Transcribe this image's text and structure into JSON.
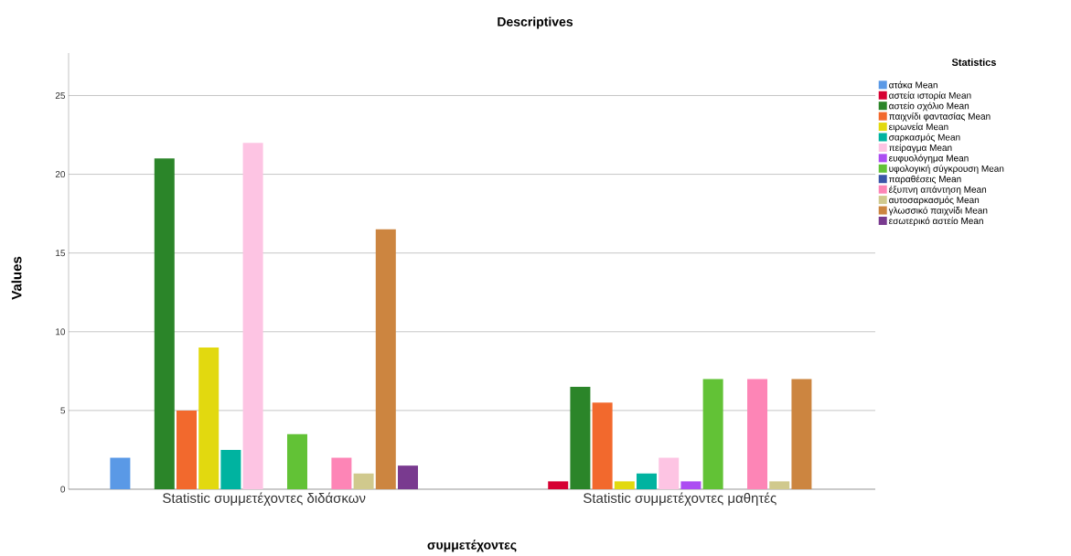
{
  "chart_data": {
    "type": "bar",
    "title": "Descriptives",
    "xlabel": "συμμετέχοντες",
    "ylabel": "Values",
    "legend_title": "Statistics",
    "categories": [
      "Statistic συμμετέχοντες διδάσκων",
      "Statistic συμμετέχοντες μαθητές"
    ],
    "series": [
      {
        "name": "ατάκα Mean",
        "color": "#5a99e6",
        "values": [
          2,
          0
        ]
      },
      {
        "name": "αστεία ιστορία Mean",
        "color": "#d60032",
        "values": [
          0,
          0.5
        ]
      },
      {
        "name": "αστείο σχόλιο Mean",
        "color": "#2b8529",
        "values": [
          21,
          6.5
        ]
      },
      {
        "name": "παιχνίδι φαντασίας Mean",
        "color": "#f2692d",
        "values": [
          5,
          5.5
        ]
      },
      {
        "name": "ειρωνεία Mean",
        "color": "#e2d90f",
        "values": [
          9,
          0.5
        ]
      },
      {
        "name": "σαρκασμός Mean",
        "color": "#00b3a0",
        "values": [
          2.5,
          1
        ]
      },
      {
        "name": "πείραγμα Mean",
        "color": "#fdc4e3",
        "values": [
          22,
          2
        ]
      },
      {
        "name": "ευφυολόγημα Mean",
        "color": "#ac4df2",
        "values": [
          0,
          0.5
        ]
      },
      {
        "name": "υφολογική σύγκρουση Mean",
        "color": "#62c236",
        "values": [
          3.5,
          7
        ]
      },
      {
        "name": "παραθέσεις Mean",
        "color": "#3a55a8",
        "values": [
          0,
          0
        ]
      },
      {
        "name": "έξυπνη απάντηση Mean",
        "color": "#fd85b6",
        "values": [
          2,
          7
        ]
      },
      {
        "name": "αυτοσαρκασμός Mean",
        "color": "#d0c98d",
        "values": [
          1,
          0.5
        ]
      },
      {
        "name": "γλωσσικό παιχνίδι Mean",
        "color": "#cc8540",
        "values": [
          16.5,
          7
        ]
      },
      {
        "name": "εσωτερικό αστείο Mean",
        "color": "#793a8f",
        "values": [
          1.5,
          0
        ]
      }
    ],
    "ylim": [
      0,
      27.7
    ],
    "yticks": [
      0,
      5,
      10,
      15,
      20,
      25
    ],
    "grid": "y",
    "legend": "top right"
  }
}
